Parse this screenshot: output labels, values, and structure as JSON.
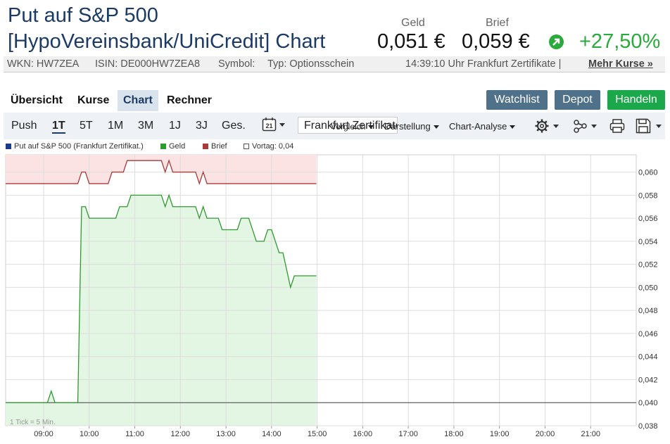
{
  "header": {
    "title_line1": "Put auf S&P 500",
    "title_line2": "[HypoVereinsbank/UniCredit] Chart",
    "geld_label": "Geld",
    "geld_value": "0,051 €",
    "brief_label": "Brief",
    "brief_value": "0,059 €",
    "change": "+27,50%",
    "change_color": "#2aaa3c"
  },
  "infobar": {
    "wkn": "WKN: HW7ZEA",
    "isin": "ISIN: DE000HW7ZEA8",
    "symbol": "Symbol:",
    "typ": "Typ: Optionsschein",
    "time": "14:39:10 Uhr Frankfurt Zertifikate |",
    "more": "Mehr Kurse »"
  },
  "tabs": [
    "Übersicht",
    "Kurse",
    "Chart",
    "Rechner"
  ],
  "active_tab": "Chart",
  "actions": {
    "watchlist": "Watchlist",
    "depot": "Depot",
    "handeln": "Handeln"
  },
  "toolbar": {
    "ranges": [
      "Push",
      "1T",
      "5T",
      "1M",
      "3M",
      "1J",
      "3J",
      "Ges."
    ],
    "active_range": "1T",
    "calendar_day": "21",
    "exchange": "Frankfurt Zertifikate",
    "vergleich": "Vergleich",
    "darstellung": "Darstellung",
    "analyse": "Chart-Analyse"
  },
  "icons": [
    "calendar-icon",
    "gear-icon",
    "share-icon",
    "print-icon",
    "save-icon",
    "arrow-up-right-icon"
  ],
  "legend": {
    "series": "Put auf S&P 500  (Frankfurt Zertifikat.)",
    "geld": "Geld",
    "brief": "Brief",
    "vortag": "Vortag: 0,04"
  },
  "chart_data": {
    "type": "line",
    "tick_note": "1 Tick = 5 Min.",
    "x_ticks": [
      "09:00",
      "10:00",
      "11:00",
      "12:00",
      "13:00",
      "14:00",
      "15:00",
      "16:00",
      "17:00",
      "18:00",
      "19:00",
      "20:00",
      "21:00"
    ],
    "y_ticks": [
      "0,060",
      "0,058",
      "0,056",
      "0,054",
      "0,052",
      "0,050",
      "0,048",
      "0,046",
      "0,044",
      "0,042",
      "0,040",
      "0,038"
    ],
    "ylim": [
      0.038,
      0.0615
    ],
    "xlim": [
      "08:10",
      "22:00"
    ],
    "reference_line": 0.04,
    "series": [
      {
        "name": "Geld",
        "color": "#2f9a2f",
        "fill": "#e3f5e3",
        "points": [
          [
            "08:10",
            0.04
          ],
          [
            "09:05",
            0.04
          ],
          [
            "09:10",
            0.041
          ],
          [
            "09:15",
            0.04
          ],
          [
            "09:45",
            0.04
          ],
          [
            "09:50",
            0.057
          ],
          [
            "09:55",
            0.057
          ],
          [
            "10:00",
            0.056
          ],
          [
            "10:35",
            0.056
          ],
          [
            "10:40",
            0.057
          ],
          [
            "10:50",
            0.057
          ],
          [
            "10:55",
            0.058
          ],
          [
            "11:35",
            0.058
          ],
          [
            "11:40",
            0.057
          ],
          [
            "11:45",
            0.058
          ],
          [
            "11:50",
            0.057
          ],
          [
            "12:20",
            0.057
          ],
          [
            "12:25",
            0.056
          ],
          [
            "12:30",
            0.057
          ],
          [
            "12:35",
            0.056
          ],
          [
            "12:50",
            0.056
          ],
          [
            "12:55",
            0.055
          ],
          [
            "13:15",
            0.055
          ],
          [
            "13:20",
            0.056
          ],
          [
            "13:30",
            0.056
          ],
          [
            "13:40",
            0.054
          ],
          [
            "13:50",
            0.054
          ],
          [
            "13:55",
            0.055
          ],
          [
            "14:00",
            0.055
          ],
          [
            "14:10",
            0.053
          ],
          [
            "14:15",
            0.053
          ],
          [
            "14:25",
            0.05
          ],
          [
            "14:30",
            0.051
          ],
          [
            "14:59",
            0.051
          ]
        ]
      },
      {
        "name": "Brief",
        "color": "#a83a3a",
        "fill": "#fbe3e3",
        "points": [
          [
            "08:10",
            0.059
          ],
          [
            "09:45",
            0.059
          ],
          [
            "09:50",
            0.06
          ],
          [
            "09:55",
            0.06
          ],
          [
            "10:00",
            0.059
          ],
          [
            "10:25",
            0.059
          ],
          [
            "10:30",
            0.06
          ],
          [
            "10:45",
            0.06
          ],
          [
            "10:50",
            0.061
          ],
          [
            "11:35",
            0.061
          ],
          [
            "11:40",
            0.06
          ],
          [
            "11:45",
            0.061
          ],
          [
            "11:50",
            0.06
          ],
          [
            "12:20",
            0.06
          ],
          [
            "12:25",
            0.059
          ],
          [
            "12:30",
            0.06
          ],
          [
            "12:35",
            0.059
          ],
          [
            "14:59",
            0.059
          ]
        ]
      }
    ]
  }
}
